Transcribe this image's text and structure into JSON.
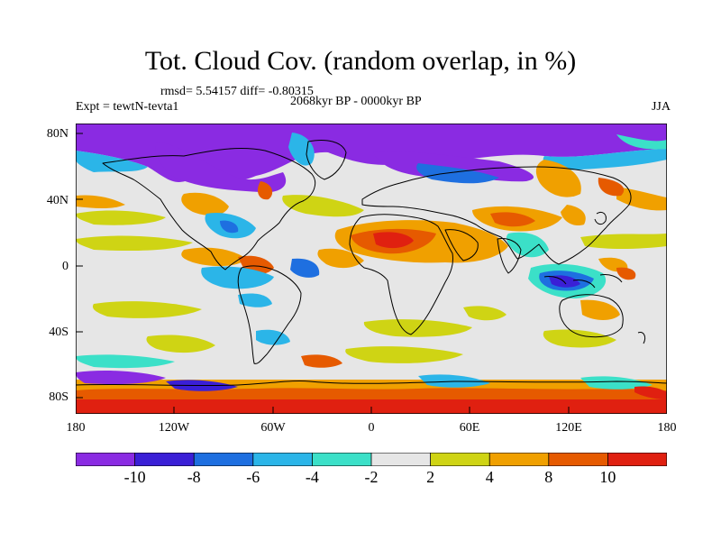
{
  "title": "Tot. Cloud Cov. (random overlap, in %)",
  "stats": "rmsd= 5.54157 diff= -0.80315",
  "experiment": "Expt = tewtN-tevta1",
  "period": "2068kyr BP - 0000kyr BP",
  "season": "JJA",
  "lat_labels": [
    "80N",
    "40N",
    "0",
    "40S",
    "80S"
  ],
  "lon_labels": [
    "180",
    "120W",
    "60W",
    "0",
    "60E",
    "120E",
    "180"
  ],
  "colorbar": {
    "labels": [
      "-10",
      "-8",
      "-6",
      "-4",
      "-2",
      "2",
      "4",
      "8",
      "10"
    ],
    "colors": [
      "#8a2be2",
      "#3a1fd6",
      "#1e6fe0",
      "#2bb5e8",
      "#3be0c8",
      "#e6e6e6",
      "#cfd414",
      "#f0a000",
      "#e65a00",
      "#e02010"
    ]
  },
  "map": {
    "background_color": "#e6e6e6",
    "coastline_color": "#000000"
  }
}
